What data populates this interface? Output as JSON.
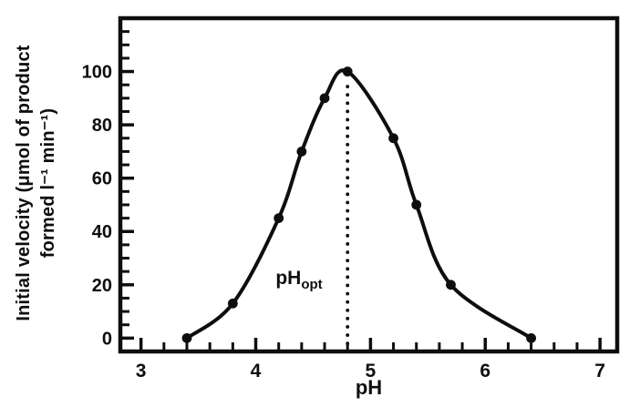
{
  "figure": {
    "background": "#ffffff",
    "ink_color": "#0e0e0e"
  },
  "chart_data": {
    "type": "line",
    "title": "",
    "xlabel": "pH",
    "ylabel": "Initial velocity (μmol of product formed l⁻¹ min⁻¹)",
    "ylabel_lines": [
      "Initial velocity (μmol of product",
      "formed l⁻¹ min⁻¹)"
    ],
    "series": [
      {
        "name": "initial-velocity-vs-pH",
        "x": [
          3.4,
          3.8,
          4.2,
          4.4,
          4.6,
          4.8,
          5.2,
          5.4,
          5.7,
          6.4
        ],
        "y": [
          0,
          13,
          45,
          70,
          90,
          100,
          75,
          50,
          20,
          0
        ]
      }
    ],
    "xlim": [
      2.82,
      7.15
    ],
    "ylim": [
      -5,
      120
    ],
    "x_major_ticks": [
      3,
      4,
      5,
      6,
      7
    ],
    "x_minor_tick_step": 0.2,
    "y_major_ticks": [
      0,
      20,
      40,
      60,
      80,
      100
    ],
    "y_minor_tick_step": 5,
    "y_minor_tick_max": 115,
    "grid": "off",
    "legend": "none",
    "marker": "filled-circle",
    "line_color": "#0e0e0e",
    "vline": {
      "x": 4.8,
      "from_y": -2,
      "to_y": 96,
      "style": "dotted"
    },
    "annotations": [
      {
        "name": "ph-opt-label",
        "text": "pH",
        "subscript": "opt",
        "x": 4.37,
        "y": 18
      }
    ]
  }
}
